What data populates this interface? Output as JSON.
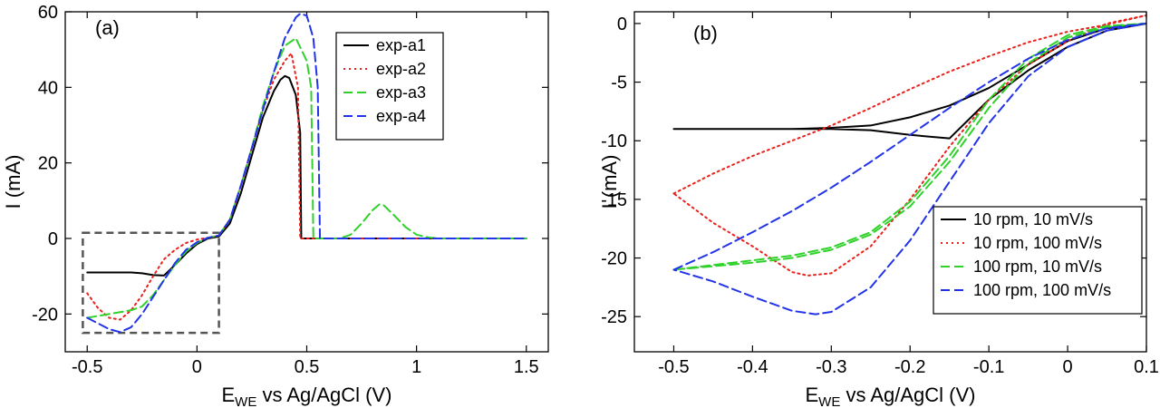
{
  "chart_data": [
    {
      "type": "line",
      "panel_label": "(a)",
      "xlabel": {
        "main": "E",
        "sub": "WE",
        "rest": " vs Ag/AgCl (V)"
      },
      "ylabel": "I (mA)",
      "xlim": [
        -0.6,
        1.6
      ],
      "ylim": [
        -30,
        60
      ],
      "xticks": [
        -0.5,
        0,
        0.5,
        1,
        1.5
      ],
      "xtick_labels": [
        "-0.5",
        "0",
        "0.5",
        "1",
        "1.5"
      ],
      "yticks": [
        -20,
        0,
        20,
        40,
        60
      ],
      "ytick_labels": [
        "-20",
        "0",
        "20",
        "40",
        "60"
      ],
      "legend_position": "upper-right",
      "inset_box": {
        "x": [
          -0.52,
          0.1
        ],
        "y": [
          -25,
          1.5
        ]
      },
      "series": [
        {
          "name": "exp-a1",
          "color": "#000000",
          "dash": "solid",
          "x": [
            -0.5,
            -0.4,
            -0.3,
            -0.25,
            -0.2,
            -0.15,
            -0.1,
            -0.05,
            0,
            0.05,
            0.1,
            0.15,
            0.2,
            0.25,
            0.3,
            0.35,
            0.38,
            0.4,
            0.42,
            0.45,
            0.47,
            0.475,
            0.5,
            0.6,
            0.8,
            1,
            1.2,
            1.5
          ],
          "y": [
            -9,
            -9,
            -9,
            -9.2,
            -9.7,
            -9.8,
            -7,
            -4,
            -1.5,
            0,
            0.5,
            4,
            12,
            22,
            32,
            39,
            42,
            43,
            42.5,
            38,
            28,
            0,
            0,
            0,
            0,
            0,
            0,
            0
          ]
        },
        {
          "name": "exp-a2",
          "color": "#e8221c",
          "dash": "dot",
          "x": [
            -0.5,
            -0.45,
            -0.4,
            -0.35,
            -0.3,
            -0.25,
            -0.2,
            -0.15,
            -0.1,
            -0.05,
            0,
            0.05,
            0.1,
            0.15,
            0.2,
            0.25,
            0.3,
            0.35,
            0.4,
            0.43,
            0.46,
            0.47,
            0.5,
            0.6,
            0.8,
            1,
            1.2,
            1.5
          ],
          "y": [
            -14.5,
            -18.5,
            -21,
            -21.5,
            -19,
            -15,
            -10,
            -5.5,
            -3,
            -1.2,
            -0.3,
            0.2,
            0.8,
            5,
            14,
            24,
            34,
            42,
            47,
            49,
            40,
            0,
            0,
            0,
            0,
            0,
            0,
            0
          ]
        },
        {
          "name": "exp-a3",
          "color": "#2fd12a",
          "dash": "dash",
          "x": [
            -0.5,
            -0.45,
            -0.4,
            -0.35,
            -0.3,
            -0.25,
            -0.2,
            -0.15,
            -0.1,
            -0.05,
            0,
            0.05,
            0.1,
            0.15,
            0.2,
            0.25,
            0.3,
            0.35,
            0.4,
            0.45,
            0.5,
            0.52,
            0.53,
            0.55,
            0.6,
            0.65,
            0.7,
            0.75,
            0.8,
            0.83,
            0.85,
            0.9,
            0.95,
            1,
            1.05,
            1.1,
            1.2,
            1.5
          ],
          "y": [
            -21,
            -20.5,
            -20,
            -19.5,
            -19,
            -18,
            -15,
            -11,
            -7,
            -3.5,
            -1.2,
            0.2,
            0.8,
            5,
            14,
            24,
            35,
            44,
            51,
            53,
            47,
            40,
            0,
            0,
            0,
            0,
            1,
            4,
            7.5,
            9,
            8.8,
            6,
            3,
            1,
            0.3,
            0,
            0,
            0
          ]
        },
        {
          "name": "exp-a4",
          "color": "#2233e8",
          "dash": "dash",
          "x": [
            -0.5,
            -0.45,
            -0.4,
            -0.35,
            -0.3,
            -0.25,
            -0.2,
            -0.15,
            -0.1,
            -0.05,
            0,
            0.05,
            0.1,
            0.15,
            0.2,
            0.25,
            0.3,
            0.35,
            0.4,
            0.45,
            0.47,
            0.5,
            0.53,
            0.55,
            0.56,
            0.6,
            0.8,
            1,
            1.2,
            1.5
          ],
          "y": [
            -21,
            -22.5,
            -24,
            -24.8,
            -23.5,
            -20,
            -15.5,
            -11,
            -6.5,
            -3,
            -1,
            0.2,
            0.8,
            5,
            14,
            24,
            34,
            44,
            53,
            58.5,
            59.5,
            59,
            53,
            40,
            0,
            0,
            0,
            0,
            0,
            0
          ]
        }
      ]
    },
    {
      "type": "line",
      "panel_label": "(b)",
      "xlabel": {
        "main": "E",
        "sub": "WE",
        "rest": " vs Ag/AgCl (V)"
      },
      "ylabel": "I (mA)",
      "xlim": [
        -0.55,
        0.1
      ],
      "ylim": [
        -28,
        1
      ],
      "xticks": [
        -0.5,
        -0.4,
        -0.3,
        -0.2,
        -0.1,
        0,
        0.1
      ],
      "xtick_labels": [
        "-0.5",
        "-0.4",
        "-0.3",
        "-0.2",
        "-0.1",
        "0",
        "0.1"
      ],
      "yticks": [
        -25,
        -20,
        -15,
        -10,
        -5,
        0
      ],
      "ytick_labels": [
        "-25",
        "-20",
        "-15",
        "-10",
        "-5",
        "0"
      ],
      "legend_position": "lower-right",
      "series": [
        {
          "name": "10 rpm, 10 mV/s",
          "color": "#000000",
          "dash": "solid",
          "x": [
            -0.5,
            -0.45,
            -0.4,
            -0.35,
            -0.3,
            -0.25,
            -0.2,
            -0.15,
            -0.1,
            -0.05,
            0,
            0.05,
            0.1,
            0.05,
            0,
            -0.05,
            -0.1,
            -0.15,
            -0.2,
            -0.25,
            -0.3,
            -0.35,
            -0.4,
            -0.5
          ],
          "y": [
            -9,
            -9,
            -9,
            -9,
            -8.9,
            -8.7,
            -8,
            -7,
            -5.5,
            -3.5,
            -1.5,
            -0.4,
            0,
            -0.6,
            -2,
            -4,
            -6.5,
            -9.8,
            -9.5,
            -9.1,
            -9,
            -9,
            -9,
            -9
          ]
        },
        {
          "name": "10 rpm, 100 mV/s",
          "color": "#e8221c",
          "dash": "dot",
          "x": [
            -0.5,
            -0.45,
            -0.4,
            -0.35,
            -0.3,
            -0.25,
            -0.2,
            -0.15,
            -0.1,
            -0.05,
            0,
            0.05,
            0.1,
            0.05,
            0,
            -0.05,
            -0.1,
            -0.15,
            -0.2,
            -0.25,
            -0.3,
            -0.33,
            -0.35,
            -0.4,
            -0.45,
            -0.5
          ],
          "y": [
            -14.5,
            -12.8,
            -11.3,
            -10,
            -8.7,
            -7.2,
            -5.6,
            -4.1,
            -2.8,
            -1.6,
            -0.7,
            -0.1,
            0.7,
            0,
            -1.5,
            -3.5,
            -6.5,
            -10.5,
            -15,
            -19,
            -21.3,
            -21.5,
            -21.2,
            -19,
            -17,
            -14.5
          ]
        },
        {
          "name": "100 rpm, 10 mV/s",
          "color": "#2fd12a",
          "dash": "dash",
          "x": [
            -0.5,
            -0.45,
            -0.4,
            -0.35,
            -0.3,
            -0.25,
            -0.2,
            -0.15,
            -0.1,
            -0.05,
            0,
            0.05,
            0.1,
            0.05,
            0,
            -0.05,
            -0.1,
            -0.15,
            -0.2,
            -0.25,
            -0.3,
            -0.35,
            -0.4,
            -0.45,
            -0.5
          ],
          "y": [
            -21,
            -20.6,
            -20.2,
            -19.8,
            -19.1,
            -17.8,
            -15.2,
            -11.3,
            -6.5,
            -3,
            -1,
            -0.2,
            0,
            -0.3,
            -1.2,
            -3.4,
            -7.2,
            -11.8,
            -15.6,
            -18,
            -19.3,
            -20,
            -20.4,
            -20.7,
            -21
          ]
        },
        {
          "name": "100 rpm, 100 mV/s",
          "color": "#2233e8",
          "dash": "dash",
          "x": [
            -0.5,
            -0.45,
            -0.4,
            -0.35,
            -0.3,
            -0.25,
            -0.2,
            -0.15,
            -0.1,
            -0.05,
            0,
            0.05,
            0.1,
            0.05,
            0,
            -0.05,
            -0.1,
            -0.15,
            -0.2,
            -0.25,
            -0.3,
            -0.32,
            -0.35,
            -0.4,
            -0.45,
            -0.5
          ],
          "y": [
            -21,
            -19.5,
            -17.8,
            -16,
            -14,
            -11.8,
            -9.5,
            -7.2,
            -5,
            -3,
            -1.4,
            -0.4,
            0,
            -0.6,
            -2,
            -4.5,
            -8.5,
            -13.5,
            -18.5,
            -22.5,
            -24.6,
            -24.8,
            -24.5,
            -23.3,
            -22,
            -21
          ]
        }
      ]
    }
  ]
}
